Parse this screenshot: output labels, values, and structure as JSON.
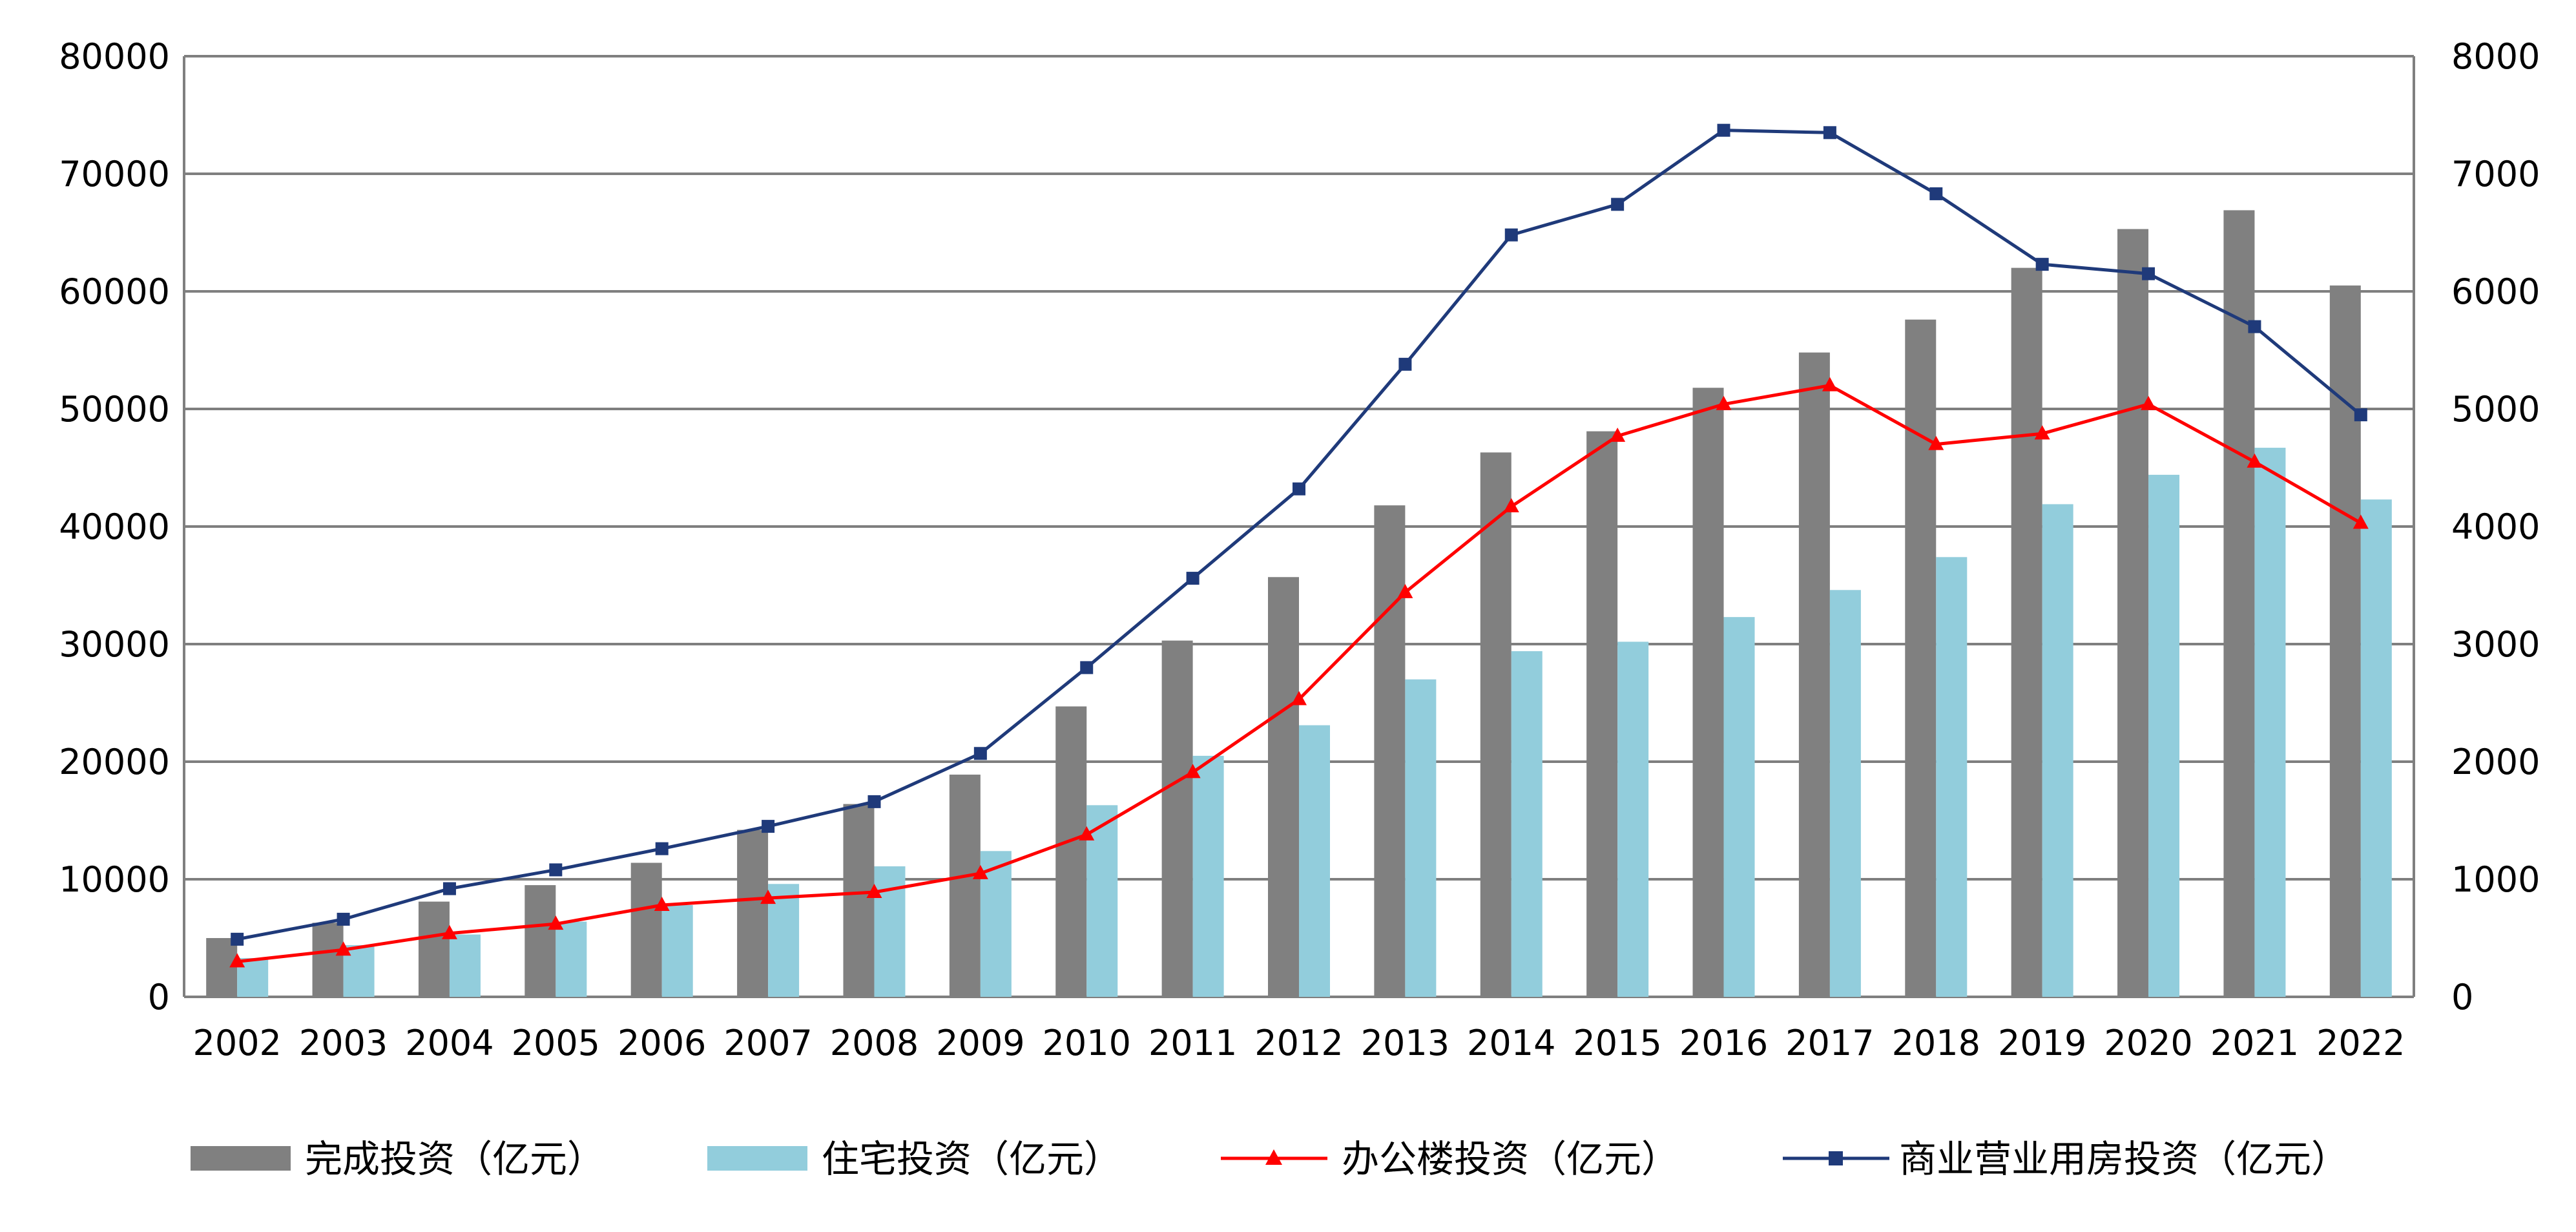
{
  "chart_data": {
    "type": "bar",
    "categories": [
      "2002",
      "2003",
      "2004",
      "2005",
      "2006",
      "2007",
      "2008",
      "2009",
      "2010",
      "2011",
      "2012",
      "2013",
      "2014",
      "2015",
      "2016",
      "2017",
      "2018",
      "2019",
      "2020",
      "2021",
      "2022"
    ],
    "series": [
      {
        "name": "完成投资（亿元）",
        "type": "bar",
        "axis": "left",
        "color": "#808080",
        "values": [
          5000,
          6300,
          8100,
          9500,
          11400,
          14200,
          16400,
          18900,
          24700,
          30300,
          35700,
          41800,
          46300,
          48100,
          51800,
          54800,
          57600,
          62000,
          65300,
          66900,
          60500
        ]
      },
      {
        "name": "住宅投资（亿元）",
        "type": "bar",
        "axis": "left",
        "color": "#92CDDC",
        "values": [
          3300,
          4400,
          5300,
          6400,
          7800,
          9600,
          11100,
          12400,
          16300,
          20500,
          23100,
          27000,
          29400,
          30200,
          32300,
          34600,
          37400,
          41900,
          44400,
          46700,
          42300
        ]
      },
      {
        "name": "办公楼投资（亿元）",
        "type": "line",
        "axis": "right",
        "color": "#FF0000",
        "marker": "triangle",
        "values": [
          300,
          400,
          540,
          620,
          780,
          840,
          890,
          1050,
          1380,
          1910,
          2530,
          3440,
          4170,
          4770,
          5040,
          5200,
          4700,
          4790,
          5040,
          4550,
          4030
        ]
      },
      {
        "name": "商业营业用房投资（亿元）",
        "type": "line",
        "axis": "right",
        "color": "#1F3A7A",
        "marker": "square",
        "values": [
          490,
          660,
          920,
          1080,
          1260,
          1450,
          1660,
          2070,
          2800,
          3560,
          4320,
          5380,
          6480,
          6740,
          7370,
          7350,
          6830,
          6230,
          6150,
          5700,
          4950
        ]
      }
    ],
    "ylim": [
      0,
      80000
    ],
    "y2lim": [
      0,
      8000
    ],
    "yticks": [
      "0",
      "10000",
      "20000",
      "30000",
      "40000",
      "50000",
      "60000",
      "70000",
      "80000"
    ],
    "y2ticks": [
      "0",
      "1000",
      "2000",
      "3000",
      "4000",
      "5000",
      "6000",
      "7000",
      "8000"
    ],
    "grid": true,
    "legend_position": "bottom"
  }
}
